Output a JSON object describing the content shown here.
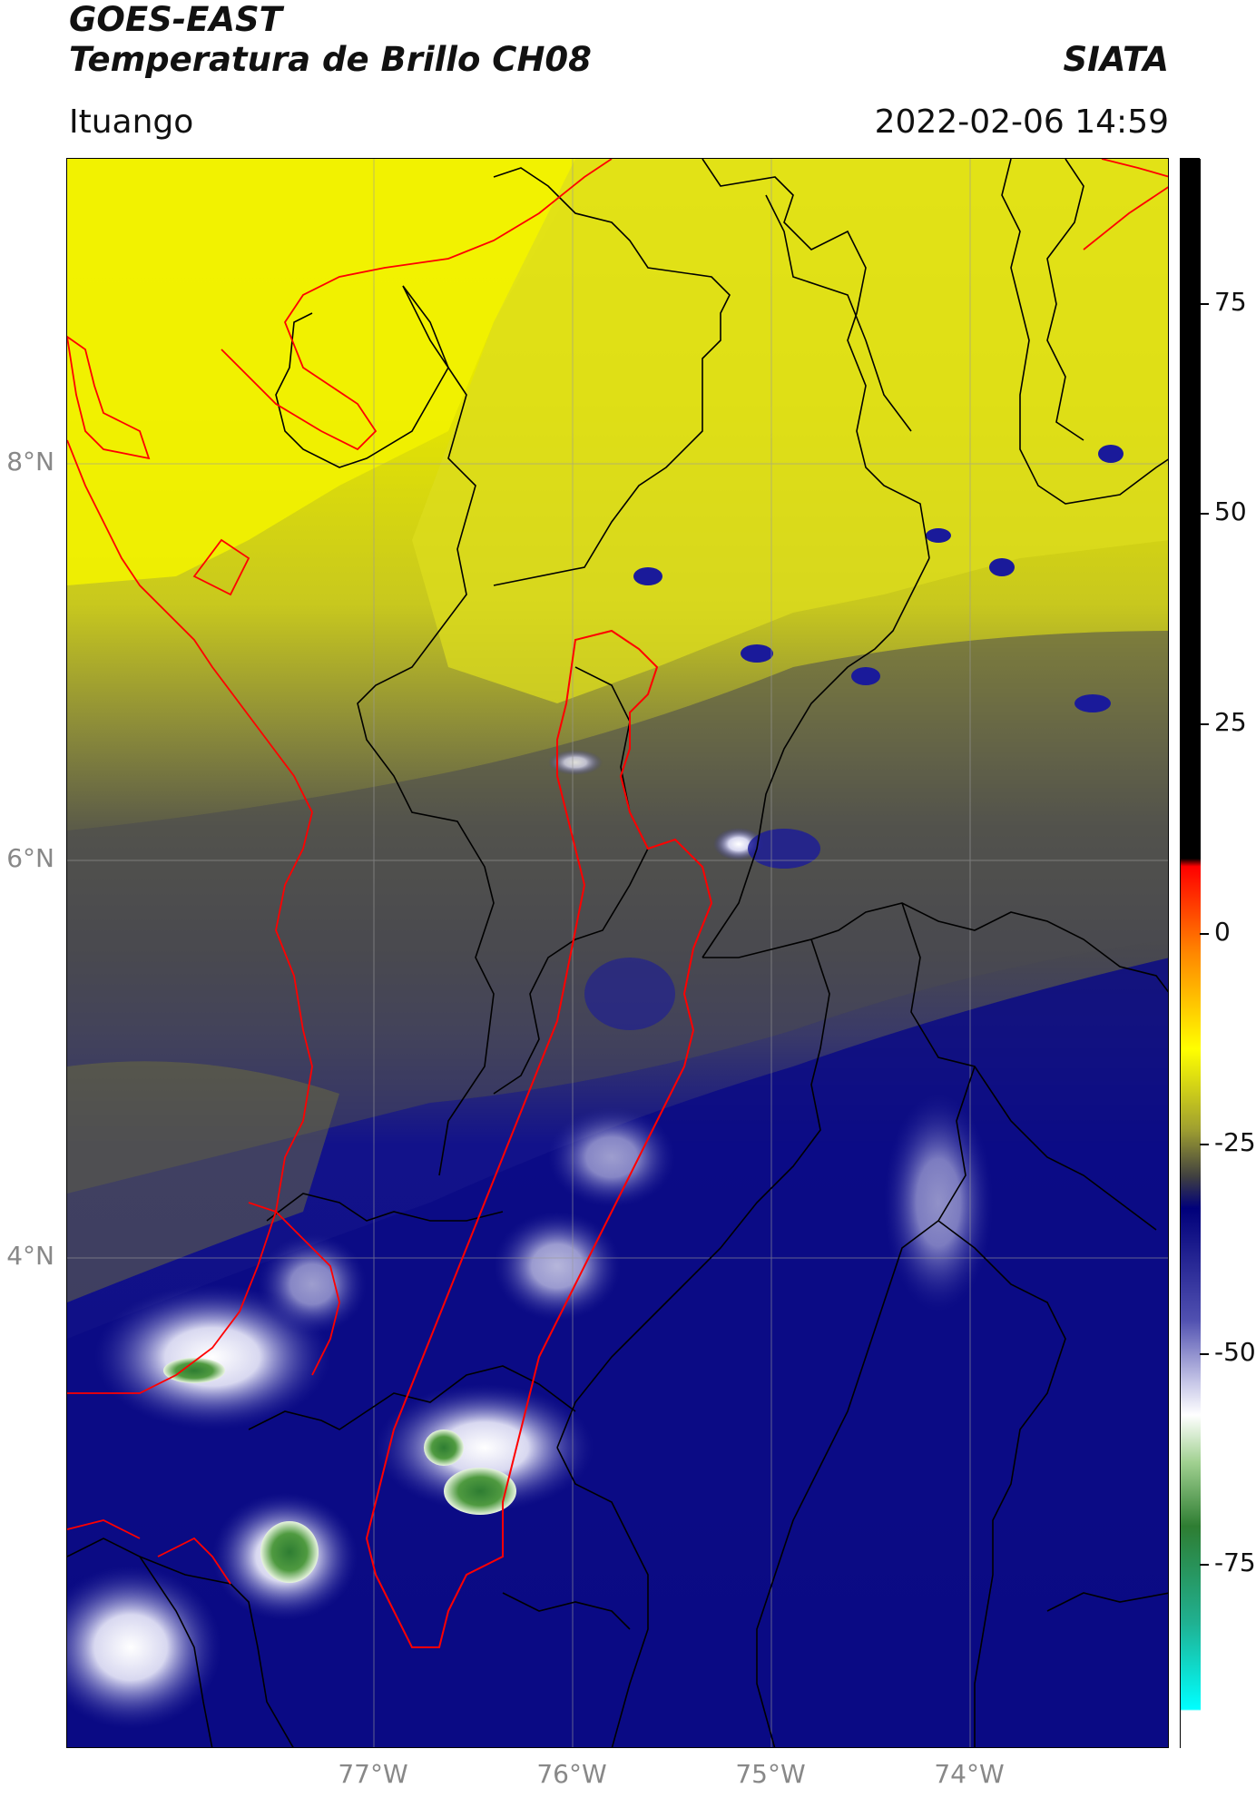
{
  "header": {
    "satellite": "GOES-EAST",
    "product": "Temperatura de Brillo CH08",
    "brand": "SIATA",
    "region": "Ituango",
    "datetime": "2022-02-06 14:59"
  },
  "axes": {
    "latitude_ticks": [
      "8°N",
      "6°N",
      "4°N"
    ],
    "longitude_ticks": [
      "77°W",
      "76°W",
      "75°W",
      "74°W"
    ]
  },
  "colorbar": {
    "tick_labels": [
      "75",
      "50",
      "25",
      "0",
      "-25",
      "-50",
      "-75"
    ],
    "colors": {
      "top_black": "#000000",
      "red": "#ff0000",
      "orange": "#ff8800",
      "yellow": "#ffff00",
      "olive": "#7a7a20",
      "dark_gray": "#404040",
      "navy": "#00007a",
      "light_purple": "#b8b8e0",
      "white": "#ffffff",
      "green": "#2e7d32",
      "teal": "#20b090",
      "cyan": "#00ffff"
    }
  },
  "map": {
    "legend_colors": {
      "warm_yellow": "#f2f200",
      "cool_gray": "#4a4a50",
      "cold_navy": "#0a0a85",
      "boundary_black": "#000000",
      "basin_red": "#ff0000"
    }
  }
}
